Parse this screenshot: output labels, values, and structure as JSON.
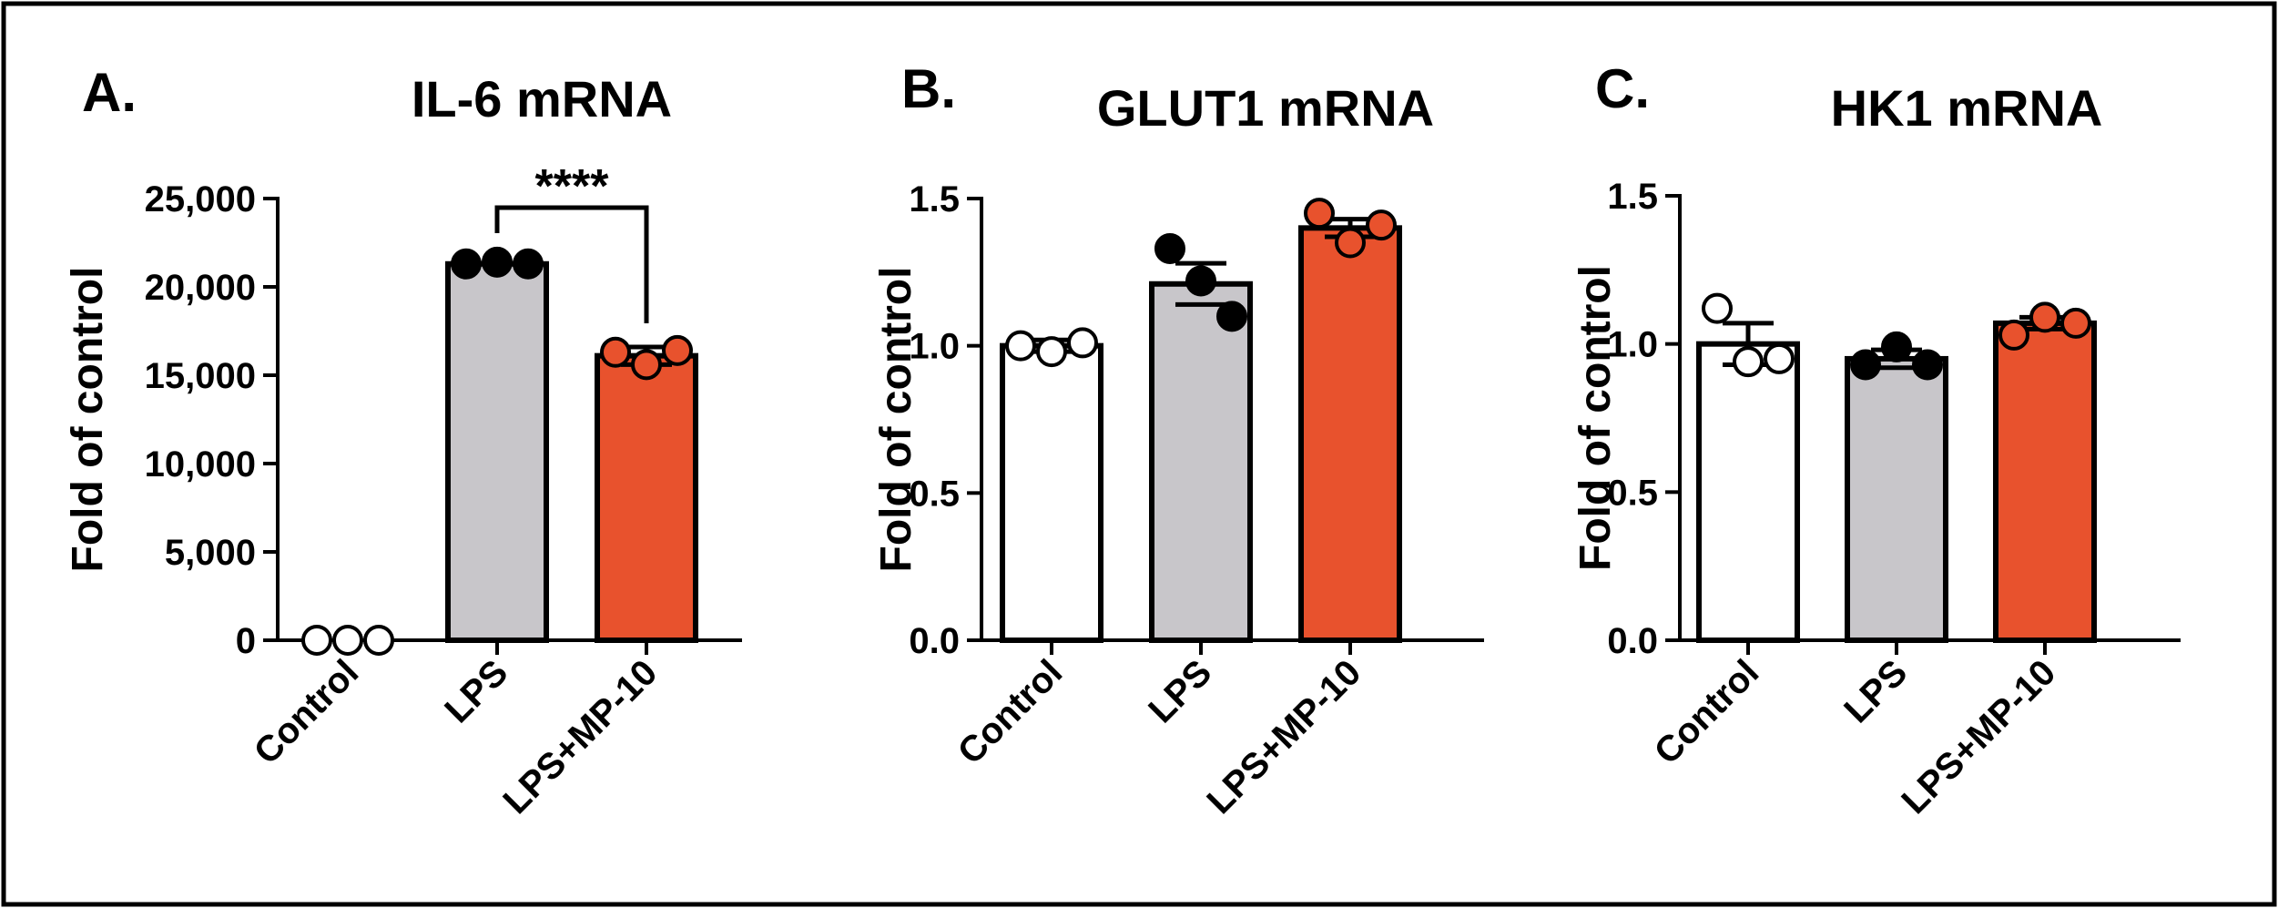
{
  "figure": {
    "colors": {
      "control_fill": "#ffffff",
      "lps_fill": "#c8c6ca",
      "lps_mp10_fill": "#e8522d",
      "control_point": "#ffffff",
      "lps_point": "#000000",
      "lps_mp10_point": "#e8522d",
      "ink": "#000000"
    }
  },
  "chart_data": [
    {
      "type": "bar",
      "panel": "A.",
      "title": "IL-6 mRNA",
      "xlabel": "",
      "ylabel": "Fold of control",
      "ylim": [
        0,
        25000
      ],
      "yticks": [
        0,
        5000,
        10000,
        15000,
        20000,
        25000
      ],
      "ytick_labels": [
        "0",
        "5,000",
        "10,000",
        "15,000",
        "20,000",
        "25,000"
      ],
      "categories": [
        "Control",
        "LPS",
        "LPS+MP-10"
      ],
      "values": [
        1,
        21300,
        16100
      ],
      "errors": [
        0,
        0,
        500
      ],
      "points": [
        [
          1,
          1,
          1
        ],
        [
          21300,
          21400,
          21300
        ],
        [
          16300,
          15600,
          16400
        ]
      ],
      "significance": {
        "from": 1,
        "to": 2,
        "label": "****"
      }
    },
    {
      "type": "bar",
      "panel": "B.",
      "title": "GLUT1 mRNA",
      "xlabel": "",
      "ylabel": "Fold of control",
      "ylim": [
        0,
        1.5
      ],
      "yticks": [
        0,
        0.5,
        1.0,
        1.5
      ],
      "ytick_labels": [
        "0.0",
        "0.5",
        "1.0",
        "1.5"
      ],
      "categories": [
        "Control",
        "LPS",
        "LPS+MP-10"
      ],
      "values": [
        1.0,
        1.21,
        1.4
      ],
      "errors": [
        0.02,
        0.07,
        0.03
      ],
      "points": [
        [
          1.0,
          0.98,
          1.01
        ],
        [
          1.33,
          1.22,
          1.1
        ],
        [
          1.45,
          1.35,
          1.41
        ]
      ]
    },
    {
      "type": "bar",
      "panel": "C.",
      "title": "HK1 mRNA",
      "xlabel": "",
      "ylabel": "Fold of control",
      "ylim": [
        0,
        1.5
      ],
      "yticks": [
        0,
        0.5,
        1.0,
        1.5
      ],
      "ytick_labels": [
        "0.0",
        "0.5",
        "1.0",
        "1.5"
      ],
      "categories": [
        "Control",
        "LPS",
        "LPS+MP-10"
      ],
      "values": [
        1.0,
        0.95,
        1.07
      ],
      "errors": [
        0.07,
        0.03,
        0.02
      ],
      "points": [
        [
          1.12,
          0.94,
          0.95
        ],
        [
          0.93,
          0.99,
          0.93
        ],
        [
          1.03,
          1.09,
          1.07
        ]
      ]
    }
  ]
}
